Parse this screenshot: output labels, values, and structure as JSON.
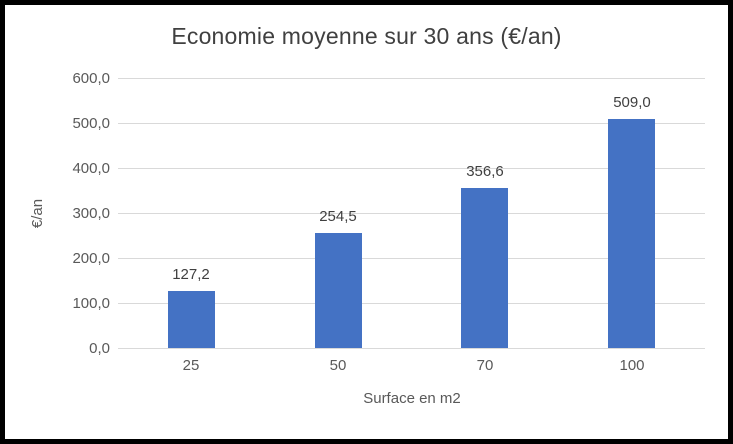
{
  "chart_data": {
    "type": "bar",
    "title": "Economie moyenne sur 30 ans (€/an)",
    "xlabel": "Surface en m2",
    "ylabel": "€/an",
    "categories": [
      "25",
      "50",
      "70",
      "100"
    ],
    "values": [
      127.2,
      254.5,
      356.6,
      509.0
    ],
    "data_labels": [
      "127,2",
      "254,5",
      "356,6",
      "509,0"
    ],
    "y_ticks": [
      {
        "value": 0,
        "label": "0,0"
      },
      {
        "value": 100,
        "label": "100,0"
      },
      {
        "value": 200,
        "label": "200,0"
      },
      {
        "value": 300,
        "label": "300,0"
      },
      {
        "value": 400,
        "label": "400,0"
      },
      {
        "value": 500,
        "label": "500,0"
      },
      {
        "value": 600,
        "label": "600,0"
      }
    ],
    "ylim": [
      0,
      600
    ],
    "grid": true,
    "legend_position": "none",
    "colors": {
      "bar": "#4472C4",
      "title_text": "#404040",
      "data_label_text": "#404040",
      "axis_text": "#595959",
      "gridline": "#D9D9D9",
      "frame_border": "#000000",
      "background": "#FFFFFF"
    }
  }
}
